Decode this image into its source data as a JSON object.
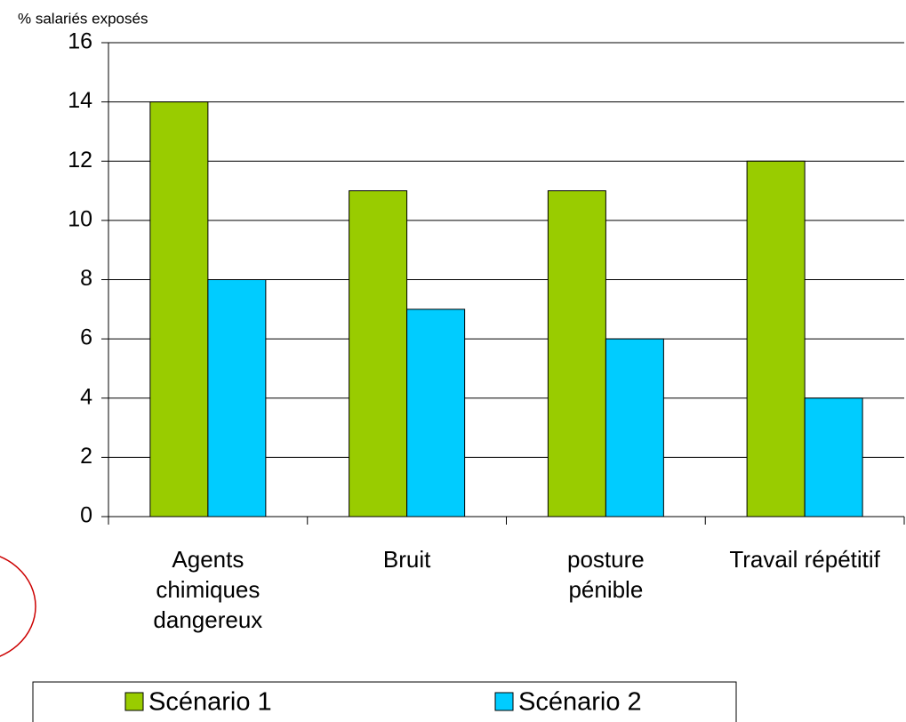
{
  "chart_data": {
    "type": "bar",
    "y_axis_label": "% salariés exposés",
    "categories": [
      "Agents chimiques dangereux",
      "Bruit",
      "posture pénible",
      "Travail répétitif"
    ],
    "series": [
      {
        "name": "Scénario 1",
        "color": "#99cc00",
        "values": [
          14,
          11,
          11,
          12
        ]
      },
      {
        "name": "Scénario 2",
        "color": "#00ccff",
        "values": [
          8,
          7,
          6,
          4
        ]
      }
    ],
    "ylim": [
      0,
      16
    ],
    "yticks": [
      0,
      2,
      4,
      6,
      8,
      10,
      12,
      14,
      16
    ],
    "grid": true,
    "legend": "bottom"
  }
}
